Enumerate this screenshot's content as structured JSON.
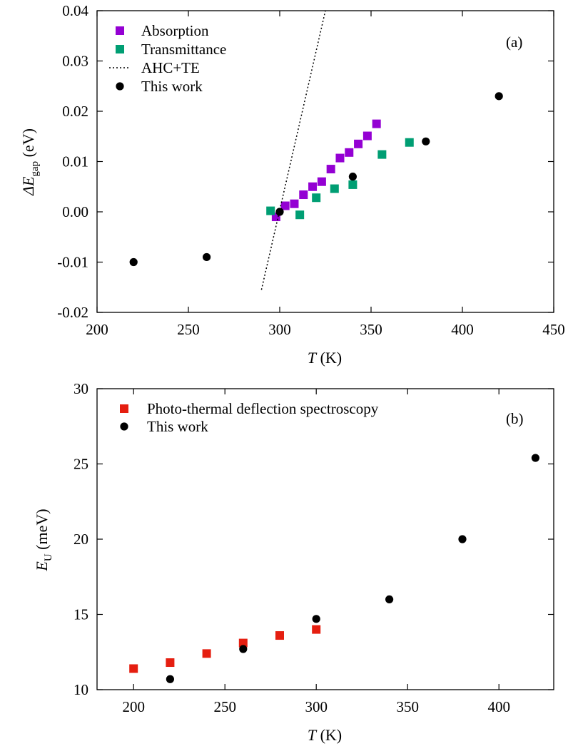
{
  "figure": {
    "panels": [
      {
        "panel_label": "(a)",
        "ylabel_main": "ΔE",
        "ylabel_sub": "gap",
        "ylabel_unit": " (eV)",
        "xlabel_var": "T",
        "xlabel_unit": " (K)"
      },
      {
        "panel_label": "(b)",
        "ylabel_main": "E",
        "ylabel_sub": "U",
        "ylabel_unit": " (meV)",
        "xlabel_var": "T",
        "xlabel_unit": " (K)"
      }
    ]
  },
  "colors": {
    "absorption": "#9400D3",
    "transmittance": "#009E73",
    "pds": "#E51E10",
    "this_work": "#000000",
    "ahc_te": "#000000"
  },
  "chart_data": [
    {
      "type": "scatter",
      "panel": "(a)",
      "xlabel": "T (K)",
      "ylabel": "ΔE_gap (eV)",
      "xlim": [
        200,
        450
      ],
      "ylim": [
        -0.02,
        0.04
      ],
      "xticks": [
        200,
        250,
        300,
        350,
        400,
        450
      ],
      "yticks": [
        -0.02,
        -0.01,
        0.0,
        0.01,
        0.02,
        0.03,
        0.04
      ],
      "xtick_labels": [
        "200",
        "250",
        "300",
        "350",
        "400",
        "450"
      ],
      "ytick_labels": [
        "-0.02",
        "-0.01",
        "0.00",
        "0.01",
        "0.02",
        "0.03",
        "0.04"
      ],
      "legend_position": "top-left",
      "series": [
        {
          "name": "Absorption",
          "marker": "square",
          "color": "#9400D3",
          "x": [
            298,
            303,
            308,
            313,
            318,
            323,
            328,
            333,
            338,
            343,
            348,
            353
          ],
          "y": [
            -0.001,
            0.0012,
            0.0016,
            0.0034,
            0.005,
            0.006,
            0.0085,
            0.0107,
            0.0118,
            0.0135,
            0.0151,
            0.0175
          ]
        },
        {
          "name": "Transmittance",
          "marker": "square",
          "color": "#009E73",
          "x": [
            295,
            311,
            320,
            330,
            340,
            356,
            371
          ],
          "y": [
            0.0002,
            -0.0006,
            0.0028,
            0.0046,
            0.0054,
            0.0114,
            0.0138
          ]
        },
        {
          "name": "AHC+TE",
          "marker": "dotted-line",
          "color": "#000000",
          "x": [
            290,
            325
          ],
          "y": [
            -0.0155,
            0.04
          ]
        },
        {
          "name": "This work",
          "marker": "circle",
          "color": "#000000",
          "x": [
            220,
            260,
            300,
            340,
            380,
            420
          ],
          "y": [
            -0.01,
            -0.009,
            0.0,
            0.007,
            0.014,
            0.023
          ]
        }
      ]
    },
    {
      "type": "scatter",
      "panel": "(b)",
      "xlabel": "T (K)",
      "ylabel": "E_U (meV)",
      "xlim": [
        180,
        430
      ],
      "ylim": [
        10,
        30
      ],
      "xticks": [
        200,
        250,
        300,
        350,
        400
      ],
      "yticks": [
        10,
        15,
        20,
        25,
        30
      ],
      "xtick_labels": [
        "200",
        "250",
        "300",
        "350",
        "400"
      ],
      "ytick_labels": [
        "10",
        "15",
        "20",
        "25",
        "30"
      ],
      "legend_position": "top-left",
      "series": [
        {
          "name": "Photo-thermal deflection spectroscopy",
          "marker": "square",
          "color": "#E51E10",
          "x": [
            200,
            220,
            240,
            260,
            280,
            300
          ],
          "y": [
            11.4,
            11.8,
            12.4,
            13.1,
            13.6,
            14.0
          ]
        },
        {
          "name": "This work",
          "marker": "circle",
          "color": "#000000",
          "x": [
            220,
            260,
            300,
            340,
            380,
            420
          ],
          "y": [
            10.7,
            12.7,
            14.7,
            16.0,
            20.0,
            25.4
          ]
        }
      ]
    }
  ]
}
